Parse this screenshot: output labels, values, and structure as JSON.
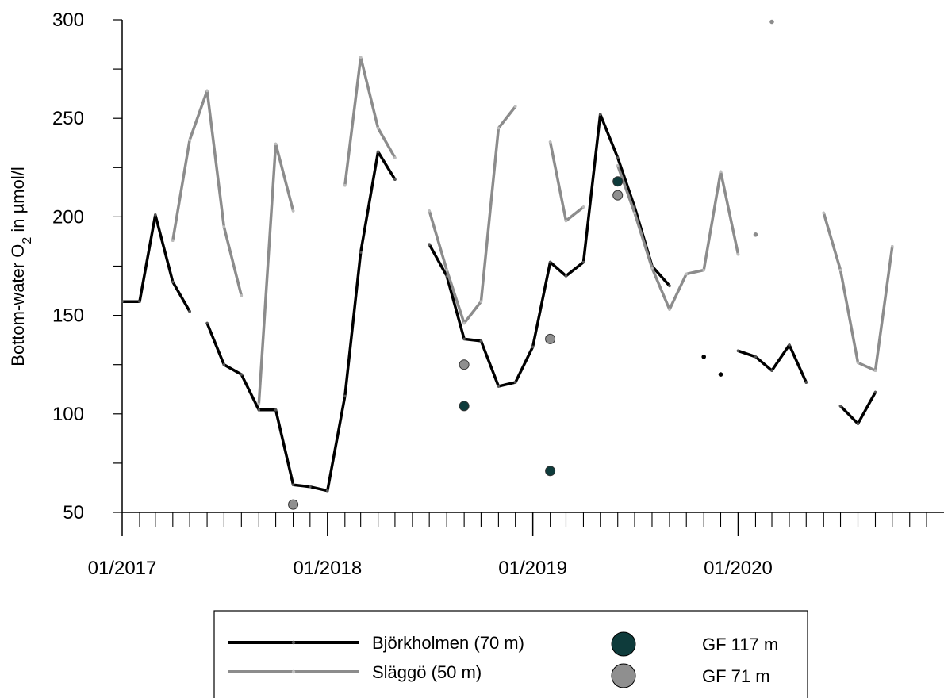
{
  "chart_data": {
    "type": "line",
    "title": "",
    "xlabel": "",
    "ylabel": "Bottom-water O",
    "ylabel_subscript": "2",
    "ylabel_suffix": " in µmol/l",
    "ylim": [
      50,
      300
    ],
    "xlim": [
      "2017-01-01",
      "2021-01-01"
    ],
    "y_ticks": [
      "50",
      "100",
      "150",
      "200",
      "250",
      "300"
    ],
    "x_tick_labels": [
      {
        "label": "01/2017",
        "date": "2017-01-01"
      },
      {
        "label": "01/2018",
        "date": "2018-01-01"
      },
      {
        "label": "01/2019",
        "date": "2019-01-01"
      },
      {
        "label": "01/2020",
        "date": "2020-01-01"
      }
    ],
    "grid": false,
    "legend_position": "bottom-center",
    "colors": {
      "bjorkholmen": "#000000",
      "slaggo": "#8c8c8c",
      "gf117": "#0e3b3b",
      "gf71": "#8f8f8f"
    },
    "series": [
      {
        "name": "Björkholmen (70 m)",
        "color_key": "bjorkholmen",
        "segments": [
          [
            [
              "2017-01-01",
              157
            ],
            [
              "2017-02-01",
              157
            ],
            [
              "2017-03-01",
              201
            ],
            [
              "2017-04-01",
              167
            ],
            [
              "2017-05-01",
              152
            ]
          ],
          [
            [
              "2017-06-01",
              146
            ],
            [
              "2017-07-01",
              125
            ],
            [
              "2017-08-01",
              120
            ],
            [
              "2017-09-01",
              102
            ],
            [
              "2017-10-01",
              102
            ],
            [
              "2017-11-01",
              64
            ],
            [
              "2017-12-01",
              63
            ],
            [
              "2018-01-01",
              61
            ],
            [
              "2018-02-01",
              109
            ],
            [
              "2018-03-01",
              182
            ],
            [
              "2018-04-01",
              233
            ],
            [
              "2018-05-01",
              219
            ]
          ],
          [
            [
              "2018-07-01",
              186
            ],
            [
              "2018-08-01",
              170
            ],
            [
              "2018-09-01",
              138
            ],
            [
              "2018-10-01",
              137
            ],
            [
              "2018-11-01",
              114
            ],
            [
              "2018-12-01",
              116
            ],
            [
              "2019-01-01",
              134
            ],
            [
              "2019-02-01",
              177
            ],
            [
              "2019-03-01",
              170
            ],
            [
              "2019-04-01",
              177
            ],
            [
              "2019-05-01",
              252
            ],
            [
              "2019-06-01",
              230
            ],
            [
              "2019-07-01",
              205
            ],
            [
              "2019-08-01",
              175
            ],
            [
              "2019-09-01",
              165
            ]
          ],
          [
            [
              "2019-11-01",
              129
            ]
          ],
          [
            [
              "2019-12-01",
              120
            ]
          ],
          [
            [
              "2020-01-01",
              132
            ],
            [
              "2020-02-01",
              129
            ],
            [
              "2020-03-01",
              122
            ],
            [
              "2020-04-01",
              135
            ],
            [
              "2020-05-01",
              116
            ]
          ],
          [
            [
              "2020-07-01",
              104
            ],
            [
              "2020-08-01",
              95
            ],
            [
              "2020-09-01",
              111
            ]
          ]
        ]
      },
      {
        "name": "Släggö (50 m)",
        "color_key": "slaggo",
        "segments": [
          [
            [
              "2017-04-01",
              188
            ],
            [
              "2017-05-01",
              239
            ],
            [
              "2017-06-01",
              264
            ],
            [
              "2017-07-01",
              195
            ],
            [
              "2017-08-01",
              160
            ]
          ],
          [
            [
              "2017-09-01",
              105
            ],
            [
              "2017-10-01",
              237
            ],
            [
              "2017-11-01",
              203
            ]
          ],
          [
            [
              "2018-02-01",
              216
            ],
            [
              "2018-03-01",
              281
            ],
            [
              "2018-04-01",
              245
            ],
            [
              "2018-05-01",
              230
            ]
          ],
          [
            [
              "2018-07-01",
              203
            ],
            [
              "2018-08-01",
              173
            ],
            [
              "2018-09-01",
              146
            ],
            [
              "2018-10-01",
              157
            ],
            [
              "2018-11-01",
              245
            ],
            [
              "2018-12-01",
              256
            ]
          ],
          [
            [
              "2019-02-01",
              238
            ],
            [
              "2019-03-01",
              198
            ],
            [
              "2019-04-01",
              205
            ]
          ],
          [
            [
              "2019-06-01",
              226
            ],
            [
              "2019-07-01",
              202
            ],
            [
              "2019-08-01",
              174
            ],
            [
              "2019-09-01",
              153
            ],
            [
              "2019-10-01",
              171
            ],
            [
              "2019-11-01",
              173
            ],
            [
              "2019-12-01",
              223
            ],
            [
              "2020-01-01",
              181
            ]
          ],
          [
            [
              "2020-02-01",
              191
            ]
          ],
          [
            [
              "2020-03-01",
              299
            ]
          ],
          [
            [
              "2020-06-01",
              202
            ],
            [
              "2020-07-01",
              173
            ],
            [
              "2020-08-01",
              126
            ],
            [
              "2020-09-01",
              122
            ],
            [
              "2020-10-01",
              185
            ]
          ]
        ]
      }
    ],
    "points": [
      {
        "name": "GF 117 m",
        "color_key": "gf117",
        "data": [
          [
            "2018-09-01",
            104
          ],
          [
            "2019-02-01",
            71
          ],
          [
            "2019-06-01",
            218
          ]
        ]
      },
      {
        "name": "GF 71 m",
        "color_key": "gf71",
        "data": [
          [
            "2017-11-01",
            54
          ],
          [
            "2018-09-01",
            125
          ],
          [
            "2019-02-01",
            138
          ],
          [
            "2019-06-01",
            211
          ]
        ]
      }
    ]
  }
}
